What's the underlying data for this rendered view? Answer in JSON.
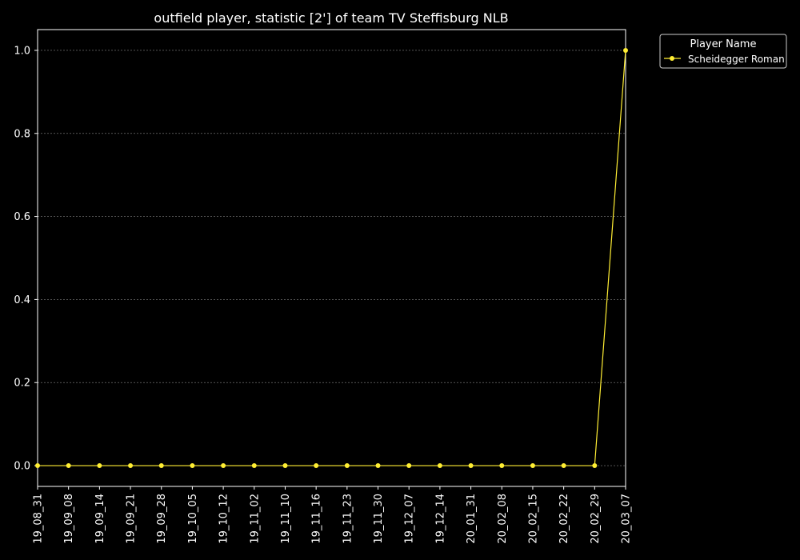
{
  "chart_data": {
    "type": "line",
    "title": "outfield player, statistic [2'] of team TV Steffisburg NLB",
    "xlabel": "",
    "ylabel": "",
    "categories": [
      "19_08_31",
      "19_09_08",
      "19_09_14",
      "19_09_21",
      "19_09_28",
      "19_10_05",
      "19_10_12",
      "19_11_02",
      "19_11_10",
      "19_11_16",
      "19_11_23",
      "19_11_30",
      "19_12_07",
      "19_12_14",
      "20_01_31",
      "20_02_08",
      "20_02_15",
      "20_02_22",
      "20_02_29",
      "20_03_07"
    ],
    "series": [
      {
        "name": "Scheidegger Roman",
        "color": "#ffee33",
        "values": [
          0,
          0,
          0,
          0,
          0,
          0,
          0,
          0,
          0,
          0,
          0,
          0,
          0,
          0,
          0,
          0,
          0,
          0,
          0,
          1.0
        ]
      }
    ],
    "ylim": [
      -0.05,
      1.05
    ],
    "yticks": [
      0.0,
      0.2,
      0.4,
      0.6,
      0.8,
      1.0
    ],
    "ytick_labels": [
      "0.0",
      "0.2",
      "0.4",
      "0.6",
      "0.8",
      "1.0"
    ],
    "grid": true,
    "legend": {
      "title": "Player Name",
      "placement": "outside-top-right"
    },
    "colors": {
      "background": "#000000",
      "axes": "#ffffff",
      "grid": "#888888"
    }
  }
}
